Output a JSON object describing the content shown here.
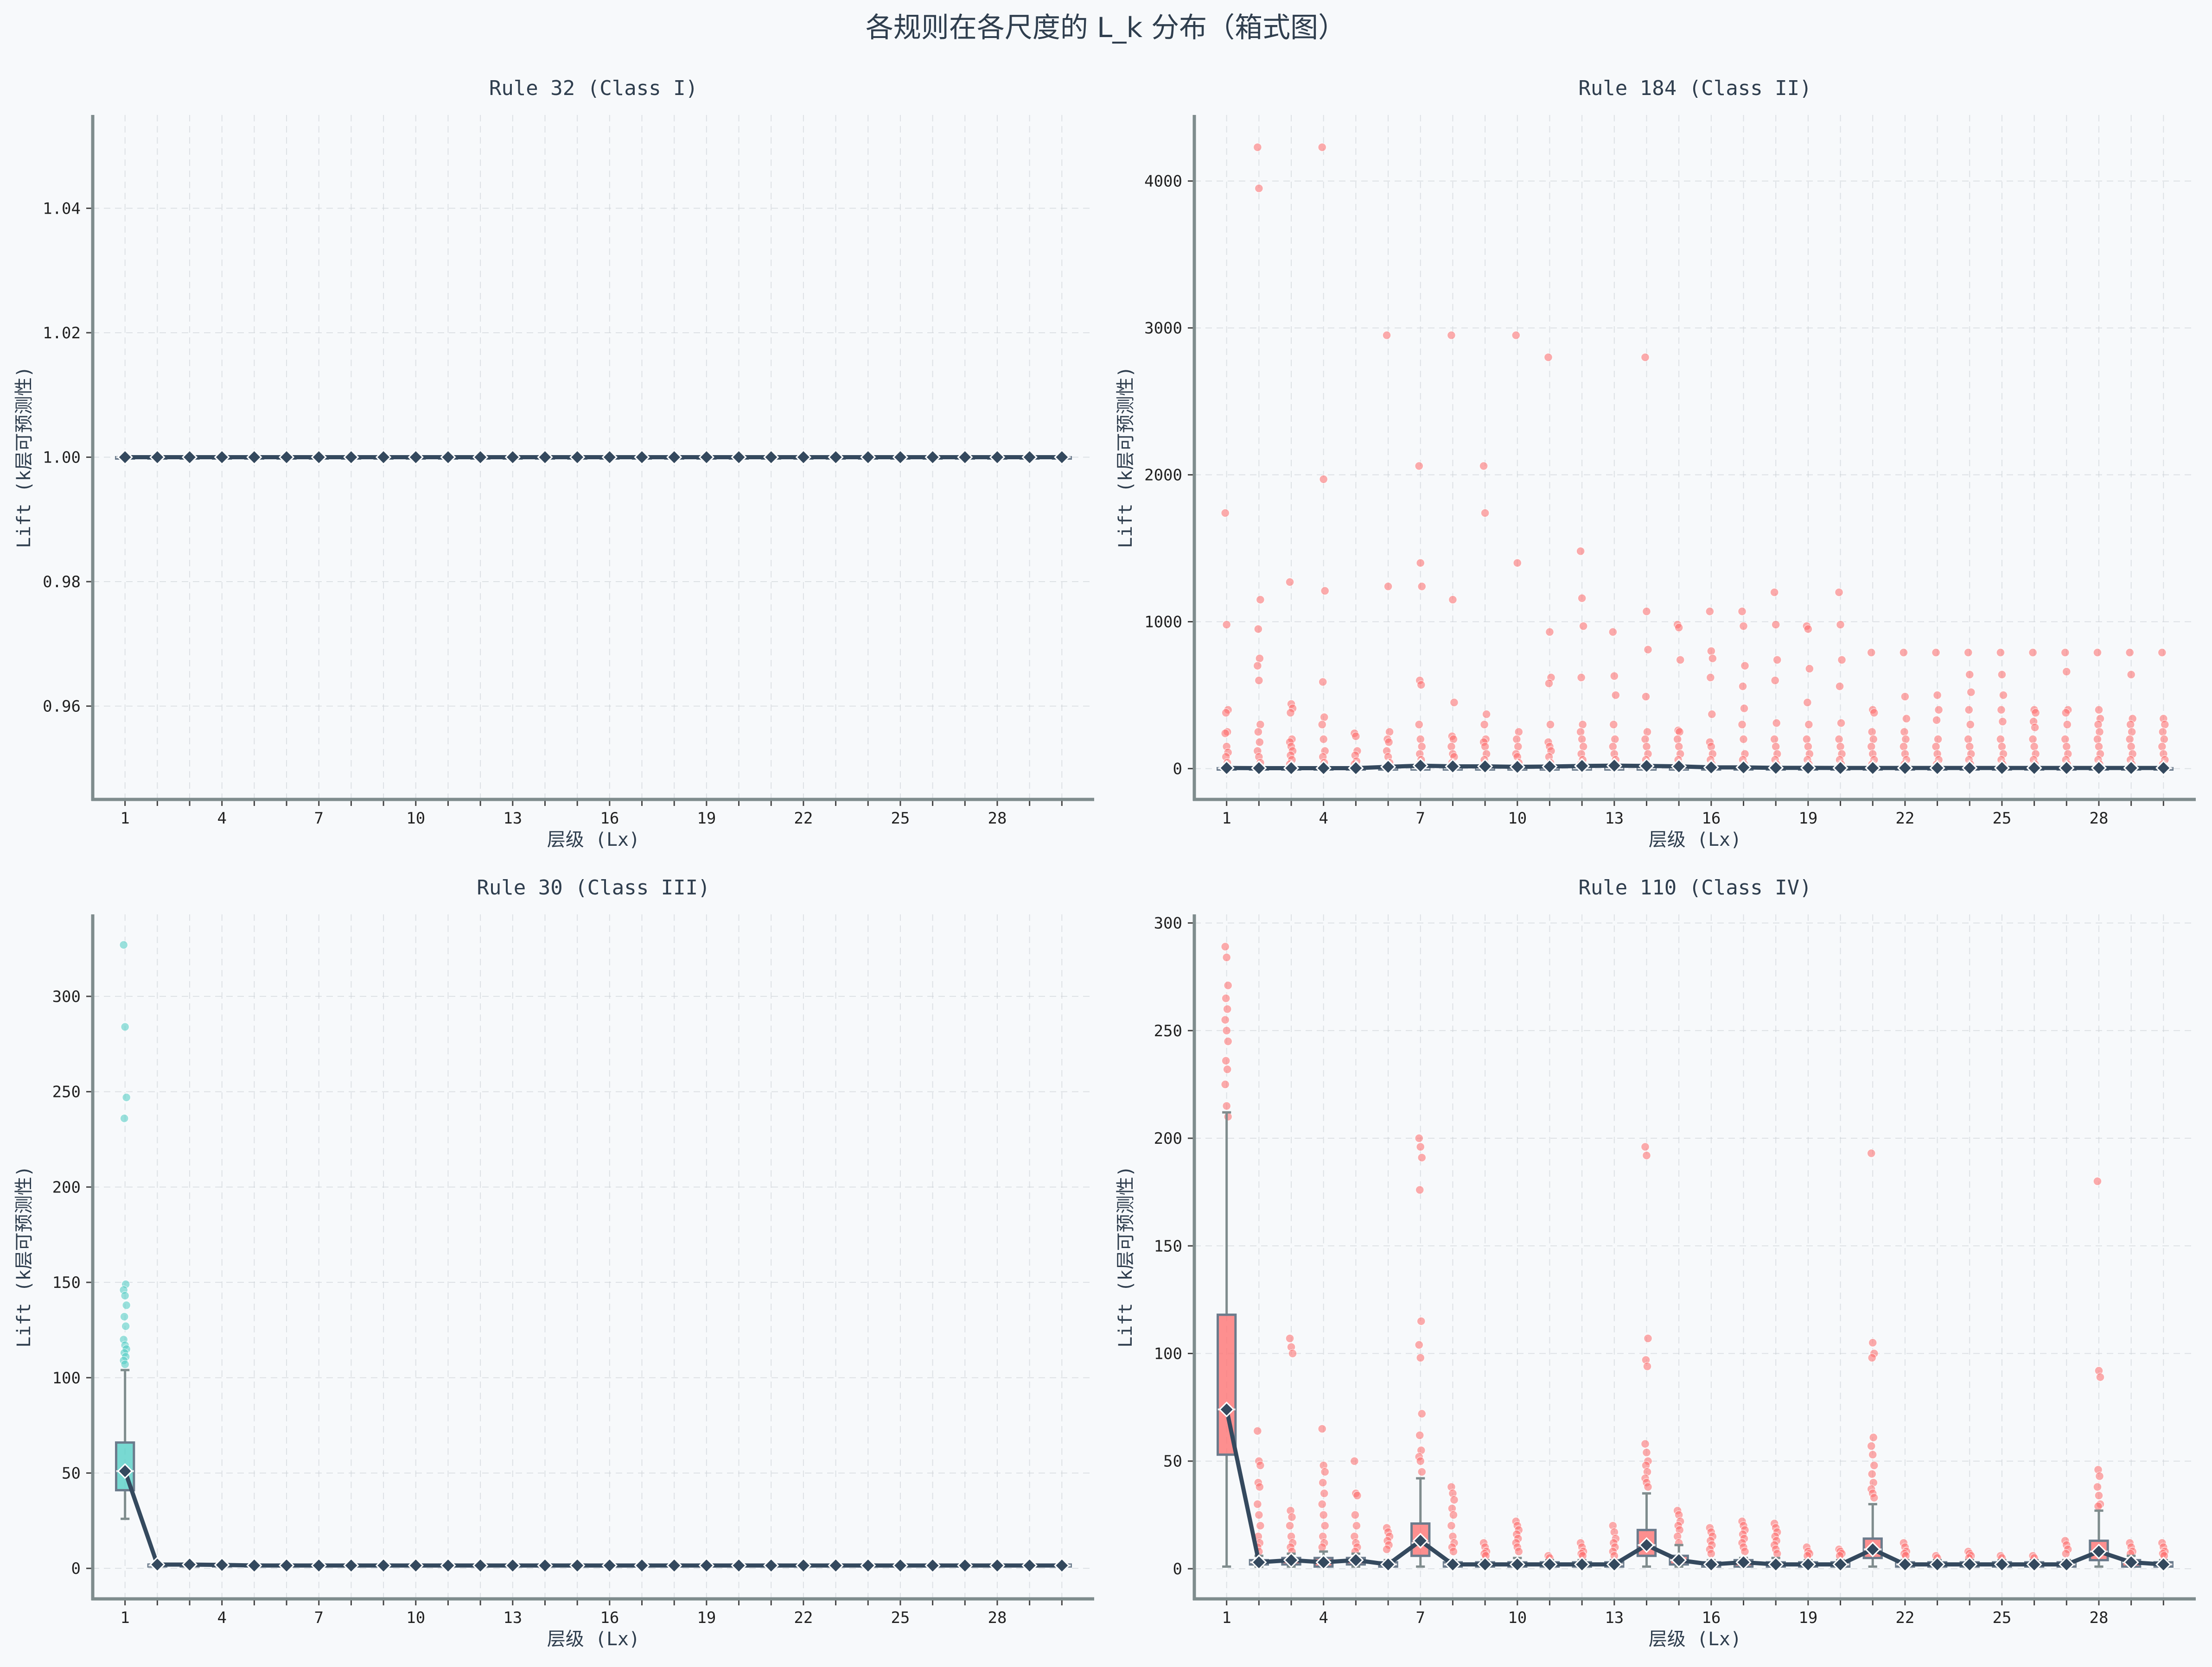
{
  "figure": {
    "title": "各规则在各尺度的 L_k 分布（箱式图）",
    "background": "#f7f9fb",
    "median_line_color": "#34495e"
  },
  "chart_data": [
    {
      "type": "box",
      "title": "Rule 32 (Class I)",
      "xlabel": "层级 (Lx)",
      "ylabel": "Lift (k层可预测性)",
      "color": "#4ecdc4",
      "x": [
        1,
        2,
        3,
        4,
        5,
        6,
        7,
        8,
        9,
        10,
        11,
        12,
        13,
        14,
        15,
        16,
        17,
        18,
        19,
        20,
        21,
        22,
        23,
        24,
        25,
        26,
        27,
        28,
        29,
        30
      ],
      "xticks": [
        1,
        4,
        7,
        10,
        13,
        16,
        19,
        22,
        25,
        28
      ],
      "ylim": [
        0.945,
        1.055
      ],
      "yticks": [
        0.96,
        0.98,
        1.0,
        1.02,
        1.04
      ],
      "ytick_labels": [
        "0.96",
        "0.98",
        "1.00",
        "1.02",
        "1.04"
      ],
      "boxes": [
        {
          "q1": 1,
          "median": 1,
          "q3": 1,
          "whislo": 1,
          "whishi": 1,
          "mean": 1
        }
      ],
      "box_default": {
        "q1": 1,
        "median": 1,
        "q3": 1,
        "whislo": 1,
        "whishi": 1,
        "mean": 1
      },
      "means": [
        1,
        1,
        1,
        1,
        1,
        1,
        1,
        1,
        1,
        1,
        1,
        1,
        1,
        1,
        1,
        1,
        1,
        1,
        1,
        1,
        1,
        1,
        1,
        1,
        1,
        1,
        1,
        1,
        1,
        1
      ],
      "outliers": []
    },
    {
      "type": "box",
      "title": "Rule 184 (Class II)",
      "xlabel": "层级 (Lx)",
      "ylabel": "Lift (k层可预测性)",
      "color": "#ff6b6b",
      "x": [
        1,
        2,
        3,
        4,
        5,
        6,
        7,
        8,
        9,
        10,
        11,
        12,
        13,
        14,
        15,
        16,
        17,
        18,
        19,
        20,
        21,
        22,
        23,
        24,
        25,
        26,
        27,
        28,
        29,
        30
      ],
      "xticks": [
        1,
        4,
        7,
        10,
        13,
        16,
        19,
        22,
        25,
        28
      ],
      "ylim": [
        -210,
        4450
      ],
      "yticks": [
        0,
        1000,
        2000,
        3000,
        4000
      ],
      "ytick_labels": [
        "0",
        "1000",
        "2000",
        "3000",
        "4000"
      ],
      "box_default": {
        "q1": 1,
        "median": 2,
        "q3": 3,
        "whislo": 1,
        "whishi": 5,
        "mean": 4
      },
      "means": [
        4,
        3,
        3,
        3,
        3,
        12,
        20,
        15,
        15,
        12,
        14,
        18,
        20,
        18,
        15,
        8,
        8,
        5,
        5,
        4,
        4,
        4,
        4,
        4,
        4,
        4,
        4,
        4,
        4,
        4
      ],
      "outliers": [
        [
          1740,
          980,
          400,
          380,
          250,
          240,
          150,
          110,
          80,
          40
        ],
        [
          4230,
          3950,
          1150,
          950,
          750,
          700,
          600,
          300,
          250,
          180,
          120,
          80,
          40
        ],
        [
          1270,
          440,
          410,
          380,
          200,
          180,
          150,
          120,
          90,
          60,
          30
        ],
        [
          4230,
          1970,
          1210,
          590,
          350,
          300,
          200,
          120,
          80,
          40
        ],
        [
          240,
          220,
          120,
          90,
          50,
          30
        ],
        [
          2950,
          1240,
          250,
          200,
          180,
          120,
          80,
          40
        ],
        [
          2060,
          1400,
          1240,
          600,
          570,
          300,
          200,
          150,
          100,
          60,
          30
        ],
        [
          2950,
          1150,
          450,
          220,
          200,
          150,
          100,
          80,
          40
        ],
        [
          2060,
          1740,
          370,
          300,
          200,
          180,
          150,
          100,
          60,
          30
        ],
        [
          2950,
          1400,
          250,
          200,
          150,
          100,
          80,
          40
        ],
        [
          2800,
          930,
          620,
          580,
          300,
          180,
          150,
          120,
          80,
          40
        ],
        [
          1480,
          1160,
          970,
          620,
          300,
          250,
          200,
          150,
          100,
          60,
          30
        ],
        [
          930,
          630,
          500,
          300,
          200,
          150,
          100,
          60,
          30
        ],
        [
          2800,
          1070,
          810,
          490,
          250,
          200,
          150,
          100,
          60,
          30
        ],
        [
          980,
          960,
          740,
          260,
          250,
          200,
          150,
          100,
          60,
          30
        ],
        [
          1070,
          800,
          750,
          620,
          370,
          180,
          150,
          100,
          60,
          30
        ],
        [
          1070,
          970,
          700,
          560,
          410,
          300,
          200,
          100,
          60,
          30
        ],
        [
          1200,
          980,
          740,
          600,
          310,
          200,
          150,
          100,
          60,
          30
        ],
        [
          970,
          950,
          680,
          450,
          300,
          200,
          150,
          100,
          60,
          30
        ],
        [
          1200,
          980,
          740,
          560,
          310,
          200,
          150,
          100,
          60,
          30
        ],
        [
          790,
          400,
          380,
          250,
          200,
          150,
          100,
          60,
          30
        ],
        [
          790,
          490,
          340,
          250,
          200,
          150,
          100,
          60,
          30
        ],
        [
          790,
          500,
          400,
          330,
          200,
          150,
          100,
          60,
          30
        ],
        [
          790,
          640,
          520,
          400,
          300,
          200,
          150,
          100,
          60,
          30
        ],
        [
          790,
          640,
          500,
          400,
          320,
          200,
          150,
          100,
          60,
          30
        ],
        [
          790,
          400,
          380,
          320,
          280,
          200,
          150,
          100,
          60,
          30
        ],
        [
          790,
          660,
          400,
          380,
          300,
          200,
          150,
          100,
          60,
          30
        ],
        [
          790,
          400,
          340,
          300,
          250,
          200,
          150,
          100,
          60,
          30
        ],
        [
          790,
          640,
          340,
          300,
          250,
          200,
          150,
          100,
          60,
          30
        ],
        [
          790,
          340,
          300,
          250,
          200,
          150,
          100,
          60,
          30
        ]
      ]
    },
    {
      "type": "box",
      "title": "Rule 30 (Class III)",
      "xlabel": "层级 (Lx)",
      "ylabel": "Lift (k层可预测性)",
      "color": "#4ecdc4",
      "x": [
        1,
        2,
        3,
        4,
        5,
        6,
        7,
        8,
        9,
        10,
        11,
        12,
        13,
        14,
        15,
        16,
        17,
        18,
        19,
        20,
        21,
        22,
        23,
        24,
        25,
        26,
        27,
        28,
        29,
        30
      ],
      "xticks": [
        1,
        4,
        7,
        10,
        13,
        16,
        19,
        22,
        25,
        28
      ],
      "ylim": [
        -16,
        343
      ],
      "yticks": [
        0,
        50,
        100,
        150,
        200,
        250,
        300
      ],
      "ytick_labels": [
        "0",
        "50",
        "100",
        "150",
        "200",
        "250",
        "300"
      ],
      "boxes": [
        {
          "q1": 41,
          "median": 51,
          "q3": 66,
          "whislo": 26,
          "whishi": 104,
          "mean": 51
        }
      ],
      "box_default": {
        "q1": 1,
        "median": 1.5,
        "q3": 2,
        "whislo": 1,
        "whishi": 2.5,
        "mean": 1.5
      },
      "means": [
        51,
        2,
        2,
        1.8,
        1.5,
        1.5,
        1.5,
        1.5,
        1.5,
        1.5,
        1.5,
        1.5,
        1.5,
        1.5,
        1.5,
        1.5,
        1.5,
        1.5,
        1.5,
        1.5,
        1.5,
        1.5,
        1.5,
        1.5,
        1.5,
        1.5,
        1.5,
        1.5,
        1.5,
        1.5
      ],
      "outliers": [
        [
          327,
          284,
          247,
          236,
          149,
          146,
          143,
          138,
          132,
          127,
          120,
          117,
          115,
          113,
          111,
          109,
          107
        ]
      ]
    },
    {
      "type": "box",
      "title": "Rule 110 (Class IV)",
      "xlabel": "层级 (Lx)",
      "ylabel": "Lift (k层可预测性)",
      "color": "#ff6b6b",
      "x": [
        1,
        2,
        3,
        4,
        5,
        6,
        7,
        8,
        9,
        10,
        11,
        12,
        13,
        14,
        15,
        16,
        17,
        18,
        19,
        20,
        21,
        22,
        23,
        24,
        25,
        26,
        27,
        28,
        29,
        30
      ],
      "xticks": [
        1,
        4,
        7,
        10,
        13,
        16,
        19,
        22,
        25,
        28
      ],
      "ylim": [
        -14,
        304
      ],
      "yticks": [
        0,
        50,
        100,
        150,
        200,
        250,
        300
      ],
      "ytick_labels": [
        "0",
        "50",
        "100",
        "150",
        "200",
        "250",
        "300"
      ],
      "boxes": [
        {
          "q1": 53,
          "median": 74,
          "q3": 118,
          "whislo": 1,
          "whishi": 212,
          "mean": 74
        },
        {
          "q1": 2,
          "median": 3,
          "q3": 4,
          "whislo": 1,
          "whishi": 6,
          "mean": 3
        },
        {
          "q1": 2,
          "median": 4,
          "q3": 5,
          "whislo": 1,
          "whishi": 7,
          "mean": 4
        },
        {
          "q1": 1,
          "median": 3,
          "q3": 5,
          "whislo": 1,
          "whishi": 8,
          "mean": 3
        },
        {
          "q1": 2,
          "median": 4,
          "q3": 5,
          "whislo": 1,
          "whishi": 7,
          "mean": 4
        },
        {
          "q1": 1,
          "median": 2,
          "q3": 3,
          "whislo": 1,
          "whishi": 4,
          "mean": 2
        },
        {
          "q1": 6,
          "median": 12,
          "q3": 21,
          "whislo": 1,
          "whishi": 42,
          "mean": 13
        },
        {
          "q1": 1,
          "median": 2,
          "q3": 3,
          "whislo": 1,
          "whishi": 4,
          "mean": 2
        },
        {
          "q1": 1,
          "median": 2,
          "q3": 3,
          "whislo": 1,
          "whishi": 4,
          "mean": 2
        },
        {
          "q1": 1,
          "median": 2,
          "q3": 3,
          "whislo": 1,
          "whishi": 5,
          "mean": 2
        },
        {
          "q1": 1,
          "median": 2,
          "q3": 3,
          "whislo": 1,
          "whishi": 4,
          "mean": 2
        },
        {
          "q1": 1,
          "median": 2,
          "q3": 3,
          "whislo": 1,
          "whishi": 4,
          "mean": 2
        },
        {
          "q1": 1,
          "median": 2,
          "q3": 3,
          "whislo": 1,
          "whishi": 4,
          "mean": 2
        },
        {
          "q1": 6,
          "median": 11,
          "q3": 18,
          "whislo": 1,
          "whishi": 35,
          "mean": 11
        },
        {
          "q1": 2,
          "median": 4,
          "q3": 6,
          "whislo": 1,
          "whishi": 11,
          "mean": 4
        },
        {
          "q1": 1,
          "median": 2,
          "q3": 3,
          "whislo": 1,
          "whishi": 4,
          "mean": 2
        },
        {
          "q1": 1,
          "median": 3,
          "q3": 4,
          "whislo": 1,
          "whishi": 5,
          "mean": 3
        },
        {
          "q1": 1,
          "median": 2,
          "q3": 3,
          "whislo": 1,
          "whishi": 5,
          "mean": 2
        },
        {
          "q1": 1,
          "median": 2,
          "q3": 3,
          "whislo": 1,
          "whishi": 4,
          "mean": 2
        },
        {
          "q1": 1,
          "median": 2,
          "q3": 3,
          "whislo": 1,
          "whishi": 4,
          "mean": 2
        },
        {
          "q1": 5,
          "median": 9,
          "q3": 14,
          "whislo": 1,
          "whishi": 30,
          "mean": 9
        },
        {
          "q1": 1,
          "median": 2,
          "q3": 3,
          "whislo": 1,
          "whishi": 4,
          "mean": 2
        },
        {
          "q1": 1,
          "median": 2,
          "q3": 3,
          "whislo": 1,
          "whishi": 4,
          "mean": 2
        },
        {
          "q1": 1,
          "median": 2,
          "q3": 3,
          "whislo": 1,
          "whishi": 4,
          "mean": 2
        },
        {
          "q1": 1,
          "median": 2,
          "q3": 3,
          "whislo": 1,
          "whishi": 4,
          "mean": 2
        },
        {
          "q1": 1,
          "median": 2,
          "q3": 3,
          "whislo": 1,
          "whishi": 4,
          "mean": 2
        },
        {
          "q1": 1,
          "median": 2,
          "q3": 3,
          "whislo": 1,
          "whishi": 4,
          "mean": 2
        },
        {
          "q1": 4,
          "median": 8,
          "q3": 13,
          "whislo": 1,
          "whishi": 27,
          "mean": 8
        },
        {
          "q1": 1,
          "median": 3,
          "q3": 4,
          "whislo": 1,
          "whishi": 6,
          "mean": 3
        },
        {
          "q1": 1,
          "median": 2,
          "q3": 3,
          "whislo": 1,
          "whishi": 4,
          "mean": 2
        }
      ],
      "means": [
        74,
        3,
        4,
        3,
        4,
        2,
        13,
        2,
        2,
        2,
        2,
        2,
        2,
        11,
        4,
        2,
        3,
        2,
        2,
        2,
        9,
        2,
        2,
        2,
        2,
        2,
        2,
        8,
        3,
        2
      ],
      "outliers": [
        [
          289,
          284,
          271,
          265,
          260,
          255,
          250,
          245,
          236,
          232,
          225,
          215,
          210
        ],
        [
          64,
          50,
          48,
          40,
          38,
          30,
          25,
          20,
          15,
          12,
          10,
          8
        ],
        [
          107,
          103,
          100,
          27,
          24,
          20,
          15,
          12,
          10,
          8
        ],
        [
          65,
          48,
          45,
          40,
          35,
          30,
          25,
          20,
          15,
          12,
          10
        ],
        [
          50,
          35,
          34,
          25,
          20,
          15,
          12,
          10,
          8
        ],
        [
          19,
          17,
          15,
          13,
          11,
          9
        ],
        [
          200,
          196,
          191,
          176,
          115,
          104,
          98,
          72,
          62,
          55,
          52,
          50,
          45
        ],
        [
          38,
          35,
          32,
          28,
          25,
          20,
          15,
          12,
          10,
          8
        ],
        [
          12,
          10,
          8,
          7,
          6
        ],
        [
          22,
          20,
          18,
          16,
          14,
          12,
          10,
          8
        ],
        [
          6,
          5
        ],
        [
          12,
          10,
          8,
          7,
          6
        ],
        [
          20,
          17,
          14,
          12,
          10,
          8,
          6
        ],
        [
          196,
          192,
          107,
          97,
          94,
          58,
          54,
          50,
          48,
          45,
          42,
          40,
          38
        ],
        [
          27,
          25,
          22,
          20,
          18,
          15,
          12
        ],
        [
          19,
          17,
          15,
          13,
          11,
          9,
          7
        ],
        [
          22,
          20,
          18,
          16,
          14,
          12,
          10,
          8
        ],
        [
          21,
          19,
          17,
          15,
          13,
          11,
          9,
          7
        ],
        [
          10,
          8,
          7,
          6
        ],
        [
          9,
          8,
          7,
          6
        ],
        [
          193,
          105,
          100,
          98,
          61,
          57,
          53,
          48,
          44,
          40,
          37,
          35,
          33
        ],
        [
          12,
          10,
          8,
          7,
          6
        ],
        [
          6,
          5
        ],
        [
          8,
          7,
          6,
          5
        ],
        [
          6,
          5
        ],
        [
          6,
          5
        ],
        [
          13,
          11,
          9,
          7
        ],
        [
          180,
          92,
          89,
          46,
          43,
          38,
          34,
          30,
          29
        ],
        [
          12,
          10,
          8,
          7
        ],
        [
          12,
          10,
          8,
          7,
          6
        ]
      ]
    }
  ]
}
